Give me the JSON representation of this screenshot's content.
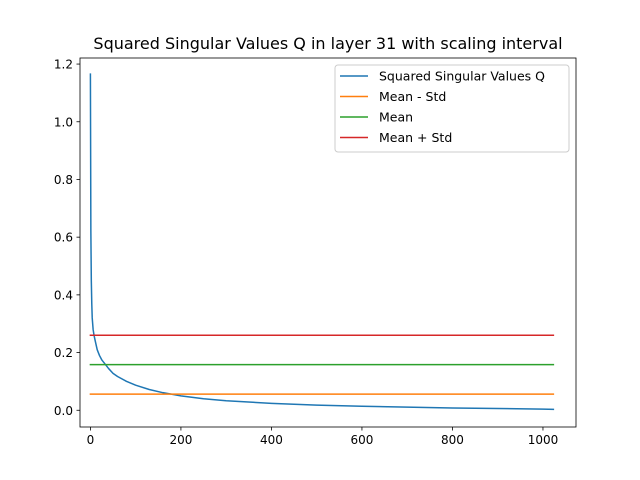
{
  "chart_data": {
    "type": "line",
    "title": "Squared Singular Values Q in layer 31 with scaling interval",
    "xlabel": "",
    "ylabel": "",
    "xlim": [
      -23,
      1073
    ],
    "ylim": [
      -0.058,
      1.221
    ],
    "grid": false,
    "legend_position": "top-right",
    "xticks": [
      0,
      200,
      400,
      600,
      800,
      1000
    ],
    "xtick_labels": [
      "0",
      "200",
      "400",
      "600",
      "800",
      "1000"
    ],
    "yticks": [
      0.0,
      0.2,
      0.4,
      0.6,
      0.8,
      1.0,
      1.2
    ],
    "ytick_labels": [
      "0.0",
      "0.2",
      "0.4",
      "0.6",
      "0.8",
      "1.0",
      "1.2"
    ],
    "series": [
      {
        "name": "Squared Singular Values Q",
        "color": "#1f77b4",
        "x": [
          0,
          1,
          2,
          3,
          4,
          6,
          8,
          10,
          15,
          20,
          25,
          30,
          40,
          50,
          60,
          80,
          100,
          130,
          160,
          200,
          250,
          300,
          400,
          500,
          600,
          700,
          800,
          900,
          1000,
          1023
        ],
        "y": [
          1.165,
          0.62,
          0.45,
          0.37,
          0.32,
          0.28,
          0.26,
          0.245,
          0.21,
          0.19,
          0.175,
          0.165,
          0.145,
          0.128,
          0.117,
          0.1,
          0.087,
          0.072,
          0.061,
          0.05,
          0.04,
          0.033,
          0.024,
          0.018,
          0.014,
          0.011,
          0.008,
          0.006,
          0.004,
          0.003
        ]
      },
      {
        "name": "Mean - Std",
        "color": "#ff7f0e",
        "x": [
          0,
          1023
        ],
        "y": [
          0.056,
          0.056
        ]
      },
      {
        "name": "Mean",
        "color": "#2ca02c",
        "x": [
          0,
          1023
        ],
        "y": [
          0.158,
          0.158
        ]
      },
      {
        "name": "Mean + Std",
        "color": "#d62728",
        "x": [
          0,
          1023
        ],
        "y": [
          0.26,
          0.26
        ]
      }
    ]
  }
}
